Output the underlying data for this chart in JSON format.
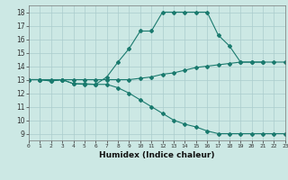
{
  "xlabel": "Humidex (Indice chaleur)",
  "ylabel": "",
  "background_color": "#cce8e4",
  "grid_color": "#aacccc",
  "line_color": "#1a7a6e",
  "xlim": [
    0,
    23
  ],
  "ylim": [
    8.5,
    18.5
  ],
  "xticks": [
    0,
    1,
    2,
    3,
    4,
    5,
    6,
    7,
    8,
    9,
    10,
    11,
    12,
    13,
    14,
    15,
    16,
    17,
    18,
    19,
    20,
    21,
    22,
    23
  ],
  "yticks": [
    9,
    10,
    11,
    12,
    13,
    14,
    15,
    16,
    17,
    18
  ],
  "line1_x": [
    0,
    1,
    2,
    3,
    4,
    5,
    6,
    7,
    8,
    9,
    10,
    11,
    12,
    13,
    14,
    15,
    16,
    17,
    18,
    19,
    20,
    21
  ],
  "line1_y": [
    13,
    13,
    12.9,
    13,
    12.7,
    12.7,
    12.65,
    13.2,
    14.3,
    15.3,
    16.6,
    16.6,
    18.0,
    18.0,
    18.0,
    18.0,
    18.0,
    16.3,
    15.5,
    14.3,
    14.3,
    14.3
  ],
  "line2_x": [
    0,
    1,
    2,
    3,
    4,
    5,
    6,
    7,
    8,
    9,
    10,
    11,
    12,
    13,
    14,
    15,
    16,
    17,
    18,
    19,
    20,
    21,
    22,
    23
  ],
  "line2_y": [
    13,
    13,
    13,
    13,
    13,
    13,
    13,
    13,
    13,
    13.0,
    13.1,
    13.2,
    13.4,
    13.5,
    13.7,
    13.9,
    14.0,
    14.1,
    14.2,
    14.3,
    14.3,
    14.3,
    14.3,
    14.3
  ],
  "line3_x": [
    0,
    1,
    2,
    3,
    4,
    5,
    6,
    7,
    8,
    9,
    10,
    11,
    12,
    13,
    14,
    15,
    16,
    17,
    18,
    19,
    20,
    21,
    22,
    23
  ],
  "line3_y": [
    13,
    13,
    12.9,
    13,
    12.7,
    12.65,
    12.65,
    12.65,
    12.4,
    12.0,
    11.5,
    11.0,
    10.5,
    10.0,
    9.7,
    9.5,
    9.2,
    9.0,
    9.0,
    9.0,
    9.0,
    9.0,
    9.0,
    9.0
  ],
  "marker": "D",
  "markersize": 2.0,
  "linewidth": 0.8
}
